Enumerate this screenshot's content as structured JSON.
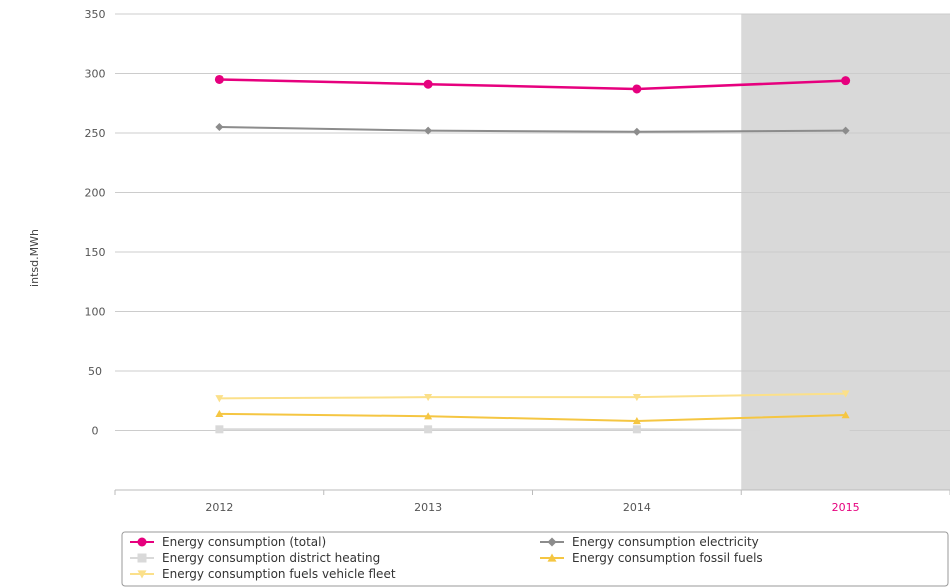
{
  "chart_data": {
    "type": "line",
    "title": "",
    "xlabel": "",
    "ylabel": "intsd.MWh",
    "categories": [
      "2012",
      "2013",
      "2014",
      "2015"
    ],
    "highlight_category": "2015",
    "ylim": [
      -50,
      350
    ],
    "yticks": [
      0,
      50,
      100,
      150,
      200,
      250,
      300,
      350
    ],
    "grid": true,
    "legend_position": "bottom",
    "series": [
      {
        "name": "Energy consumption (total)",
        "values": [
          295,
          291,
          287,
          294
        ],
        "color": "#e6007e",
        "marker": "circle"
      },
      {
        "name": "Energy consumption electricity",
        "values": [
          255,
          252,
          251,
          252
        ],
        "color": "#8c8c8c",
        "marker": "diamond"
      },
      {
        "name": "Energy consumption district heating",
        "values": [
          1,
          1,
          1,
          0
        ],
        "color": "#d9d9d9",
        "marker": "square"
      },
      {
        "name": "Energy consumption fossil fuels",
        "values": [
          14,
          12,
          8,
          13
        ],
        "color": "#f5c642",
        "marker": "triangle"
      },
      {
        "name": "Energy consumption fuels vehicle fleet",
        "values": [
          27,
          28,
          28,
          31
        ],
        "color": "#fbe08a",
        "marker": "triangle-down"
      }
    ],
    "colors": {
      "highlight_band": "#d9d9d9",
      "highlight_tick": "#e6007e",
      "grid": "#cccccc"
    }
  }
}
